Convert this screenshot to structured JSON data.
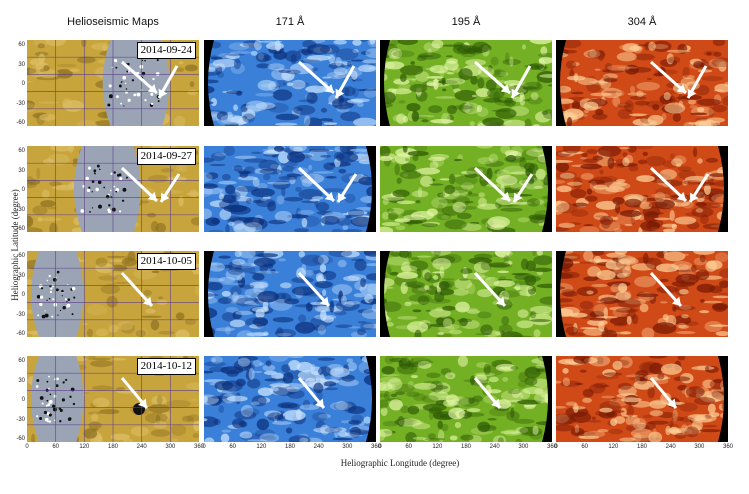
{
  "columns": [
    {
      "title": "Helioseismic Maps"
    },
    {
      "title": "171 Å"
    },
    {
      "title": "195 Å"
    },
    {
      "title": "304 Å"
    }
  ],
  "rows": [
    {
      "date": "2014-09-24"
    },
    {
      "date": "2014-09-27"
    },
    {
      "date": "2014-10-05"
    },
    {
      "date": "2014-10-12"
    }
  ],
  "axes": {
    "ylabel": "Heliographic Latitude (degree)",
    "xlabel": "Heliographic Longitude (degree)",
    "yticks": [
      "60",
      "30",
      "0",
      "-30",
      "-60"
    ],
    "xticks": [
      "0",
      "60",
      "120",
      "180",
      "240",
      "300",
      "360"
    ]
  },
  "colors": {
    "helio_gold": "#c8a43c",
    "helio_gray": "#9aa4b4",
    "aia171": "#3a7fd8",
    "aia195": "#74b024",
    "aia304": "#d04a18"
  }
}
